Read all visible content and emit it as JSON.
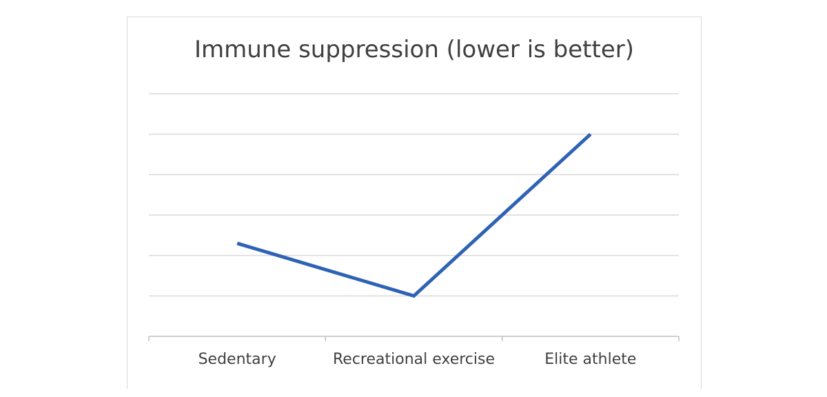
{
  "chart_data": {
    "type": "line",
    "title": "Immune suppression (lower is better)",
    "xlabel": "",
    "ylabel": "",
    "categories": [
      "Sedentary",
      "Recreational exercise",
      "Elite athlete"
    ],
    "series": [
      {
        "values": [
          2.3,
          1.0,
          5.0
        ],
        "color": "#2e63b4"
      }
    ],
    "ylim": [
      0,
      6
    ],
    "y_gridlines": [
      1,
      2,
      3,
      4,
      5,
      6
    ],
    "grid": true,
    "y_tick_labels_visible": false,
    "legend": "none"
  }
}
